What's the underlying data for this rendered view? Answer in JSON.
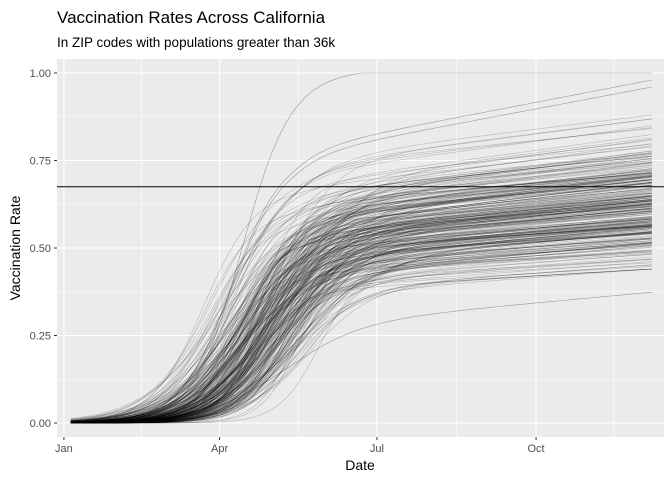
{
  "chart_data": {
    "type": "line",
    "title": "Vaccination Rates Across California",
    "subtitle": "In ZIP codes with populations greater than 36k",
    "xlabel": "Date",
    "ylabel": "Vaccination Rate",
    "x_range": [
      "2020-12-28",
      "2021-12-14"
    ],
    "ylim": [
      -0.04,
      1.04
    ],
    "x_ticks": [
      {
        "date": "2021-01-01",
        "label": "Jan"
      },
      {
        "date": "2021-04-01",
        "label": "Apr"
      },
      {
        "date": "2021-07-01",
        "label": "Jul"
      },
      {
        "date": "2021-10-01",
        "label": "Oct"
      }
    ],
    "y_ticks": [
      {
        "value": 0.0,
        "label": "0.00"
      },
      {
        "value": 0.25,
        "label": "0.25"
      },
      {
        "value": 0.5,
        "label": "0.50"
      },
      {
        "value": 0.75,
        "label": "0.75"
      },
      {
        "value": 1.0,
        "label": "1.00"
      }
    ],
    "reference_line": {
      "value": 0.675,
      "color": "#000000"
    },
    "series_start": "2021-01-05",
    "series_end": "2021-12-07",
    "series_count": 300,
    "final_rate_distribution": {
      "min": 0.355,
      "max": 1.0,
      "typical_low": 0.45,
      "typical_high": 0.85
    },
    "notable_series": [
      {
        "final": 1.0,
        "plateau_date": "2021-07-23"
      },
      {
        "final": 0.98
      },
      {
        "final": 0.96
      },
      {
        "final": 0.355
      }
    ],
    "grid": true,
    "panel_background": "#ebebeb",
    "line_color": "#000000",
    "line_opacity": 0.22
  }
}
